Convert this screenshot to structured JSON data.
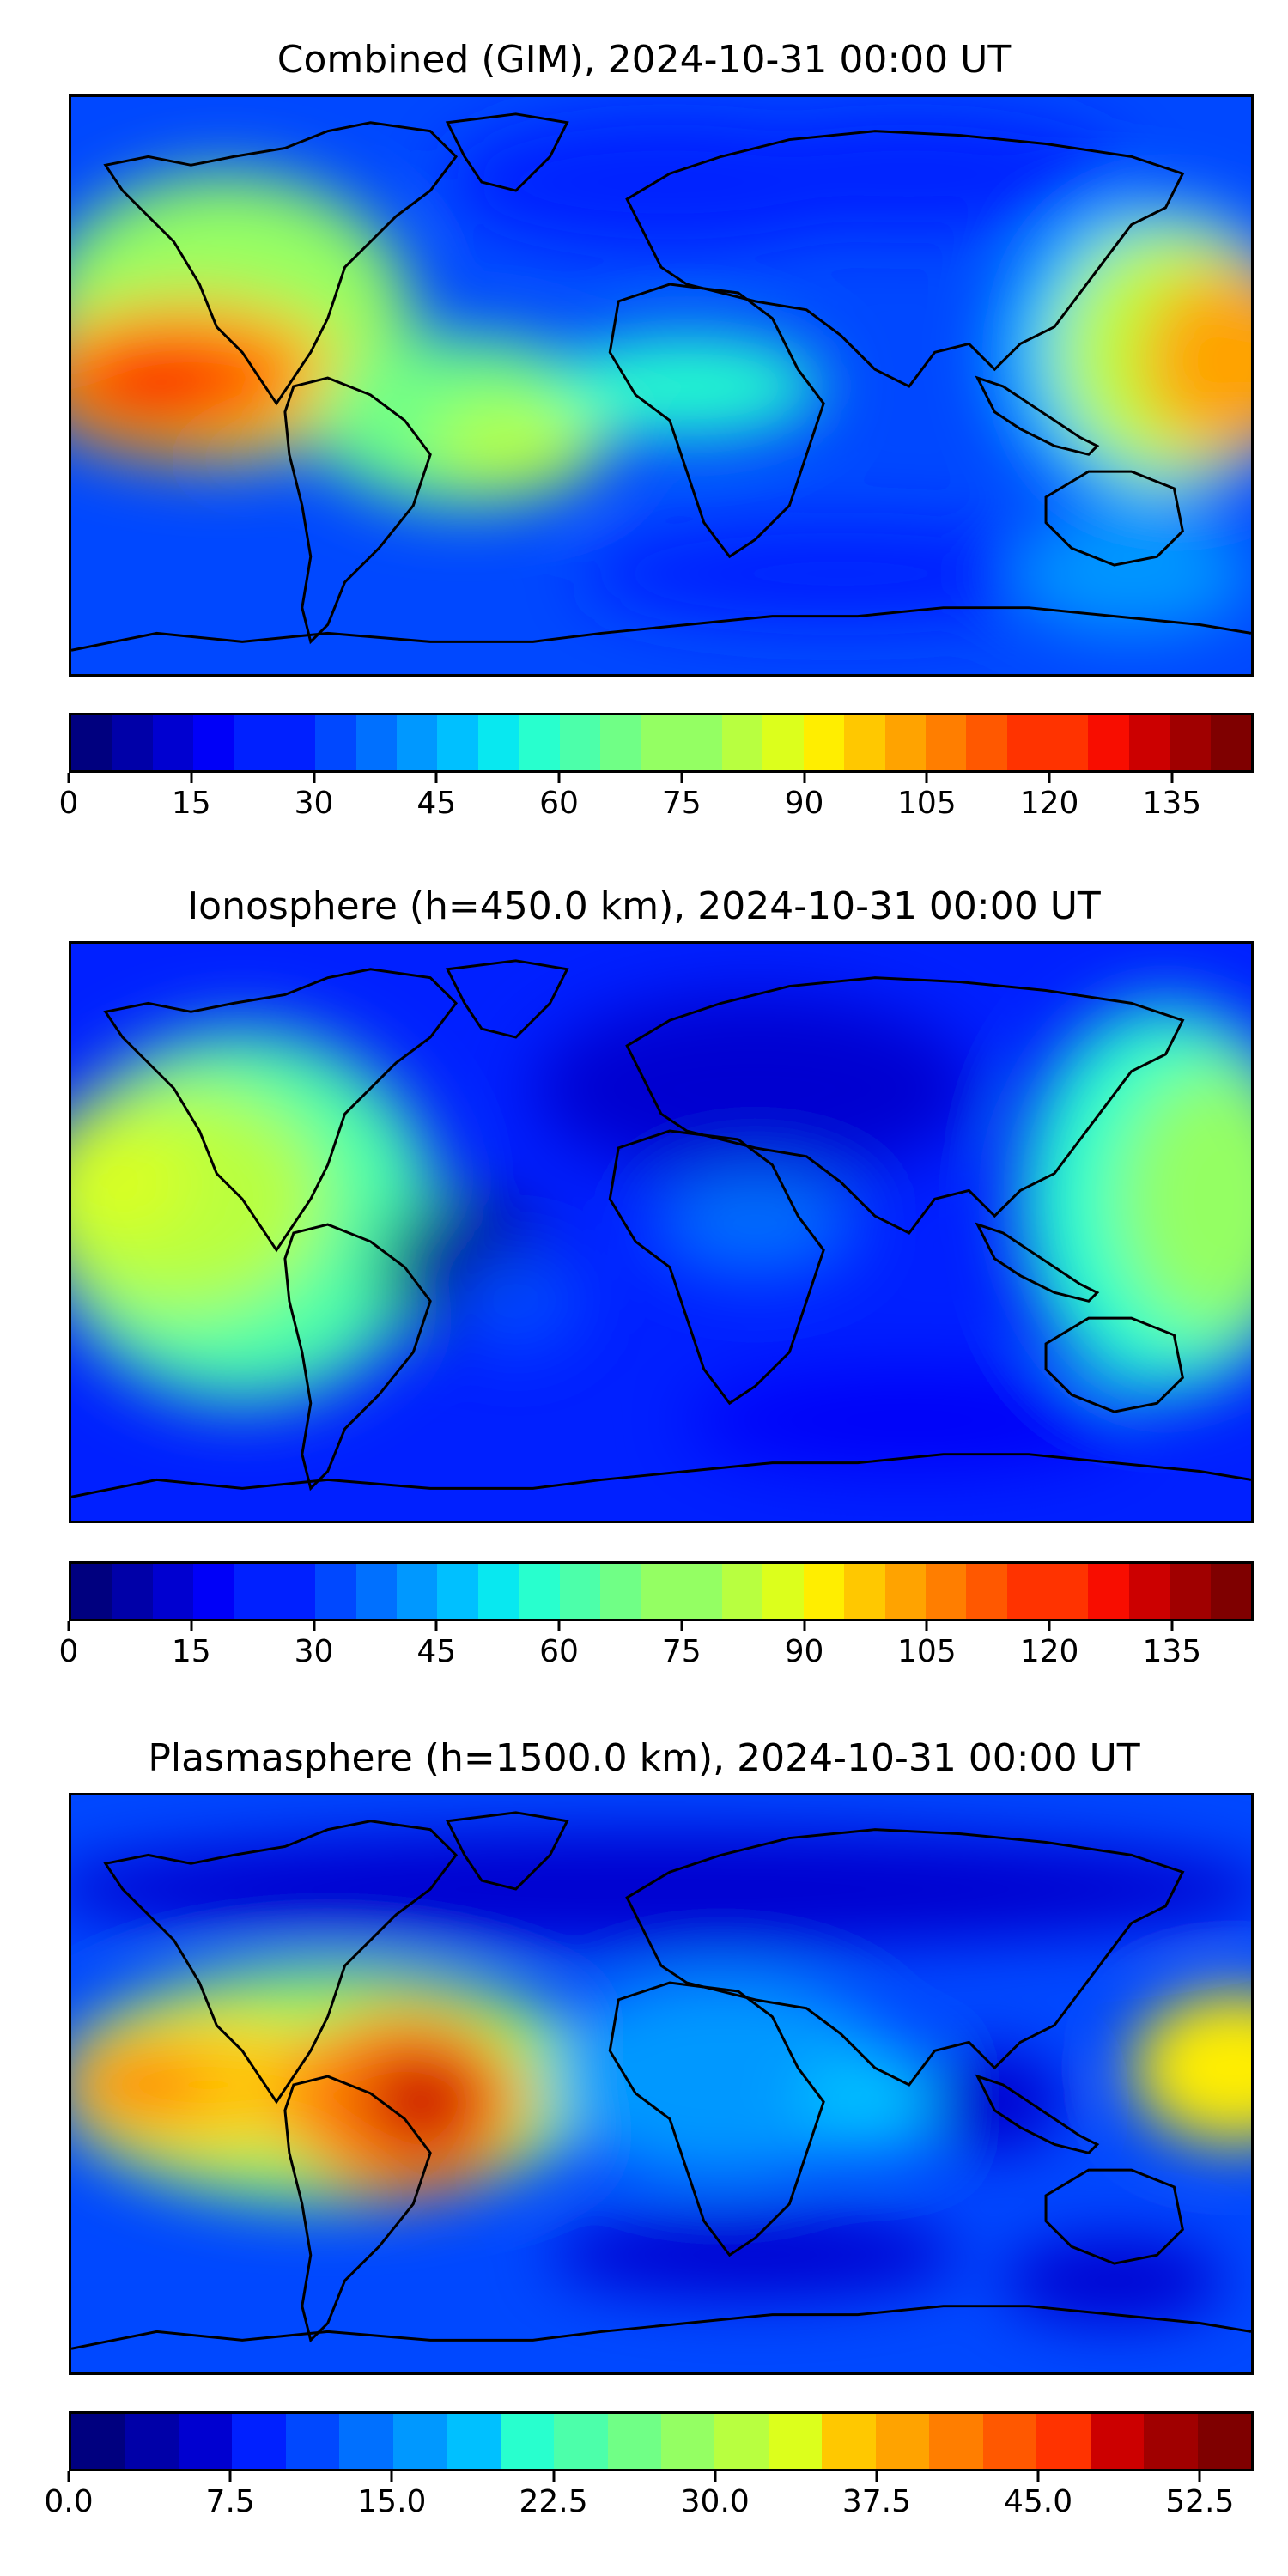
{
  "panels": [
    {
      "title": "Combined (GIM), 2024-10-31 00:00 UT",
      "colorbar": {
        "min": 0,
        "max": 145,
        "ticks": [
          "0",
          "15",
          "30",
          "45",
          "60",
          "75",
          "90",
          "105",
          "120",
          "135"
        ]
      }
    },
    {
      "title": "Ionosphere  (h=450.0 km), 2024-10-31 00:00 UT",
      "colorbar": {
        "min": 0,
        "max": 145,
        "ticks": [
          "0",
          "15",
          "30",
          "45",
          "60",
          "75",
          "90",
          "105",
          "120",
          "135"
        ]
      }
    },
    {
      "title": "Plasmasphere (h=1500.0 km), 2024-10-31 00:00 UT",
      "colorbar": {
        "min": 0,
        "max": 55,
        "ticks": [
          "0.0",
          "7.5",
          "15.0",
          "22.5",
          "30.0",
          "37.5",
          "45.0",
          "52.5"
        ]
      }
    }
  ],
  "colors": {
    "jet_segments": [
      "#00007f",
      "#0000a8",
      "#0000d0",
      "#0000f8",
      "#0020ff",
      "#0048ff",
      "#0070ff",
      "#0098ff",
      "#00c0ff",
      "#08e8f0",
      "#28ffce",
      "#4cffaa",
      "#70ff86",
      "#94ff63",
      "#b8ff40",
      "#dcff1c",
      "#ffee00",
      "#ffc800",
      "#ffa300",
      "#ff7e00",
      "#ff5800",
      "#ff3300",
      "#f80d00",
      "#cc0000",
      "#a00000",
      "#7f0000"
    ],
    "coastline": "#000000"
  }
}
